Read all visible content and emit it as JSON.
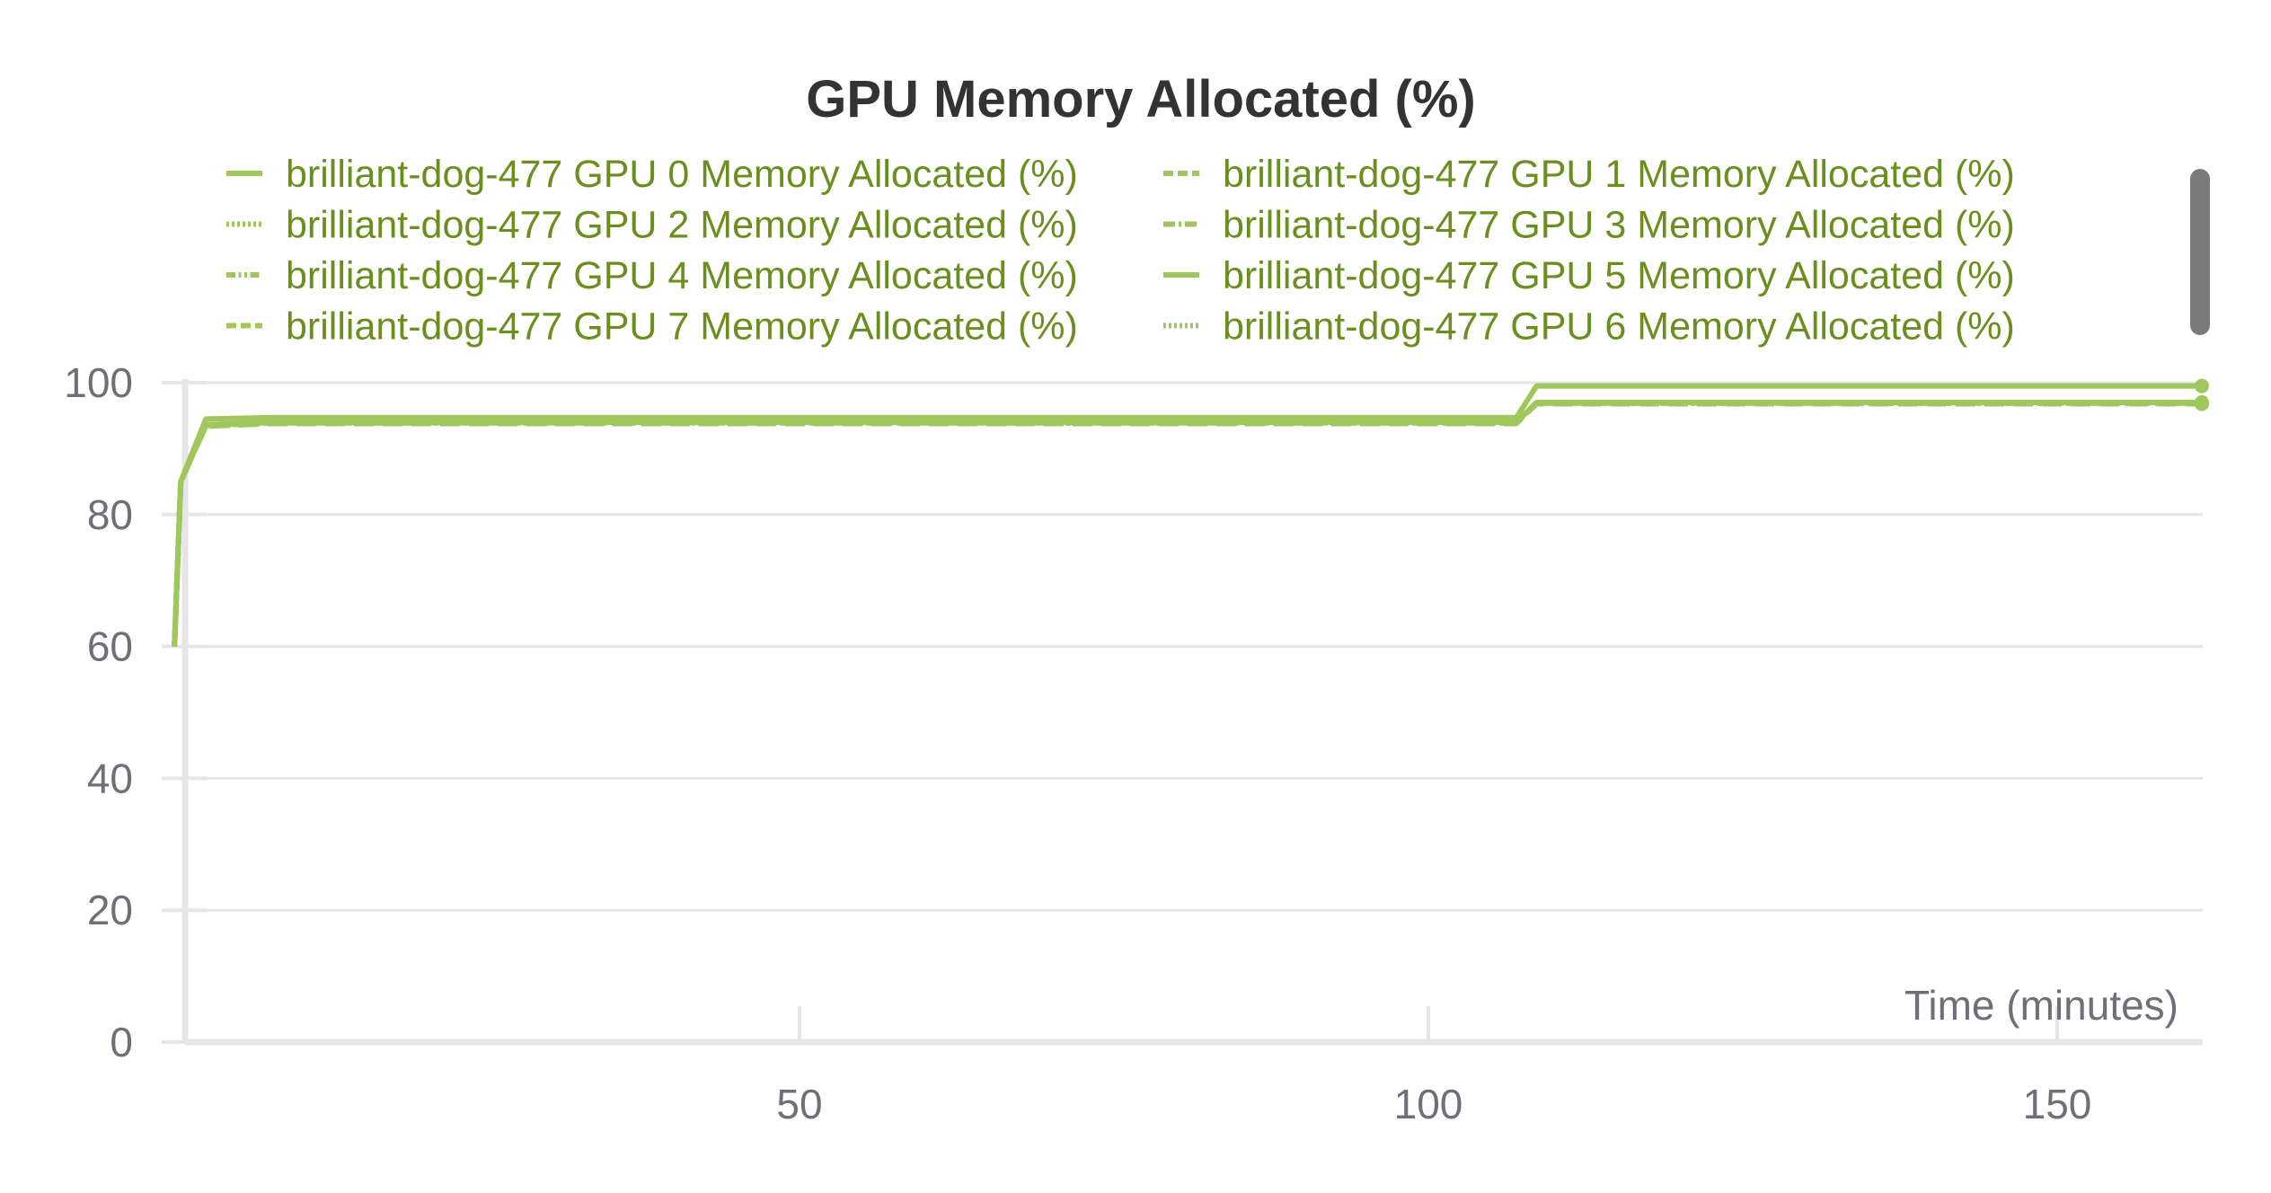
{
  "chart_data": {
    "type": "line",
    "title": "GPU Memory Allocated (%)",
    "xlabel": "Time (minutes)",
    "ylabel": "",
    "xlim": [
      0,
      162
    ],
    "ylim": [
      0,
      100
    ],
    "xticks": [
      50,
      100,
      150
    ],
    "yticks": [
      0,
      20,
      40,
      60,
      80,
      100
    ],
    "grid": true,
    "legend_placement": "top",
    "line_color": "#a0c75c",
    "legend_text_color": "#6a8f1f",
    "x": [
      0.3,
      0.8,
      2.8,
      8,
      107,
      108.6,
      161.5
    ],
    "series": [
      {
        "name": "brilliant-dog-477 GPU 0 Memory Allocated (%)",
        "dash": "solid",
        "values": [
          60,
          85,
          94.5,
          94.7,
          94.7,
          99.5,
          99.5
        ]
      },
      {
        "name": "brilliant-dog-477 GPU 1 Memory Allocated (%)",
        "dash": "dashed",
        "values": [
          60,
          85,
          93.4,
          93.8,
          93.8,
          96.8,
          96.8
        ]
      },
      {
        "name": "brilliant-dog-477 GPU 2 Memory Allocated (%)",
        "dash": "dotted",
        "values": [
          60,
          85,
          93.5,
          93.9,
          93.9,
          96.9,
          96.9
        ]
      },
      {
        "name": "brilliant-dog-477 GPU 3 Memory Allocated (%)",
        "dash": "dashdot",
        "values": [
          60,
          85,
          93.5,
          93.9,
          93.9,
          96.9,
          96.9
        ]
      },
      {
        "name": "brilliant-dog-477 GPU 4 Memory Allocated (%)",
        "dash": "dashdotdot",
        "values": [
          60,
          85,
          93.6,
          94.0,
          94.0,
          97.0,
          97.0
        ]
      },
      {
        "name": "brilliant-dog-477 GPU 5 Memory Allocated (%)",
        "dash": "solid",
        "values": [
          60,
          85,
          93.6,
          94.0,
          94.0,
          97.0,
          97.0
        ]
      },
      {
        "name": "brilliant-dog-477 GPU 7 Memory Allocated (%)",
        "dash": "dashed",
        "values": [
          60,
          85,
          93.5,
          93.9,
          93.9,
          96.8,
          96.8
        ]
      },
      {
        "name": "brilliant-dog-477 GPU 6 Memory Allocated (%)",
        "dash": "dotted",
        "values": [
          60,
          85,
          93.6,
          94.0,
          94.0,
          96.9,
          96.9
        ]
      }
    ]
  }
}
